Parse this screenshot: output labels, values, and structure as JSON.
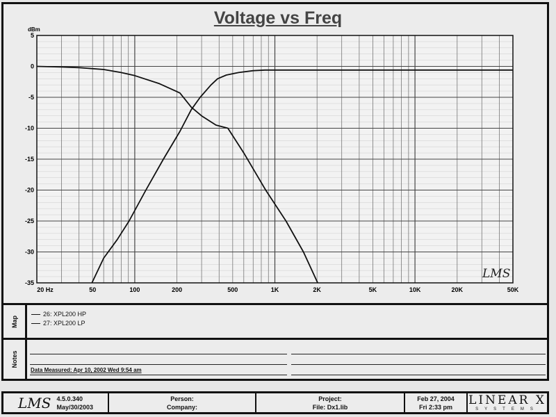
{
  "chart_data": {
    "type": "line",
    "title": "Voltage vs Freq",
    "ylabel": "dBm",
    "xlabel": "",
    "xscale": "log",
    "xlim": [
      20,
      50000
    ],
    "ylim": [
      -35,
      5
    ],
    "grid": true,
    "yticks": [
      5,
      0,
      -5,
      -10,
      -15,
      -20,
      -25,
      -30,
      -35
    ],
    "xticks": [
      {
        "v": 20,
        "label": "20 Hz"
      },
      {
        "v": 50,
        "label": "50"
      },
      {
        "v": 100,
        "label": "100"
      },
      {
        "v": 200,
        "label": "200"
      },
      {
        "v": 500,
        "label": "500"
      },
      {
        "v": 1000,
        "label": "1K"
      },
      {
        "v": 2000,
        "label": "2K"
      },
      {
        "v": 5000,
        "label": "5K"
      },
      {
        "v": 10000,
        "label": "10K"
      },
      {
        "v": 20000,
        "label": "20K"
      },
      {
        "v": 50000,
        "label": "50K"
      }
    ],
    "series": [
      {
        "name": "26: XPL200 HP",
        "x": [
          49.5,
          60,
          75,
          91,
          120,
          160,
          210,
          253,
          293,
          350,
          390,
          450,
          550,
          700,
          850,
          1000,
          2000,
          5000,
          10000,
          20000,
          50000
        ],
        "y": [
          -35,
          -31,
          -28,
          -25,
          -20,
          -15,
          -10.5,
          -7,
          -5,
          -3,
          -2,
          -1.4,
          -1,
          -0.7,
          -0.6,
          -0.6,
          -0.6,
          -0.6,
          -0.6,
          -0.6,
          -0.6
        ]
      },
      {
        "name": "27: XPL200 LP",
        "x": [
          20,
          30,
          40,
          60,
          80,
          100,
          150,
          210,
          253,
          300,
          380,
          462,
          600,
          860,
          1200,
          1600,
          2020
        ],
        "y": [
          0,
          -0.1,
          -0.2,
          -0.5,
          -1,
          -1.5,
          -2.8,
          -4.3,
          -6.6,
          -8,
          -9.5,
          -10,
          -14,
          -20,
          -25,
          -30,
          -35
        ]
      }
    ]
  },
  "watermark": "LMS",
  "map": {
    "label": "Map"
  },
  "notes": {
    "label": "Notes",
    "measured": "Data Measured: Apr 10, 2002  Wed  9:54 am"
  },
  "footer": {
    "logo": "LMS",
    "version": "4.5.0.340",
    "version_date": "May/30/2003",
    "person": "Person:",
    "company": "Company:",
    "project": "Project:",
    "file": "File: Dx1.lib",
    "date": "Feb 27, 2004",
    "time": "Fri  2:33 pm",
    "brand": "LINEAR X",
    "brand_sub": "SYSTEMS"
  }
}
